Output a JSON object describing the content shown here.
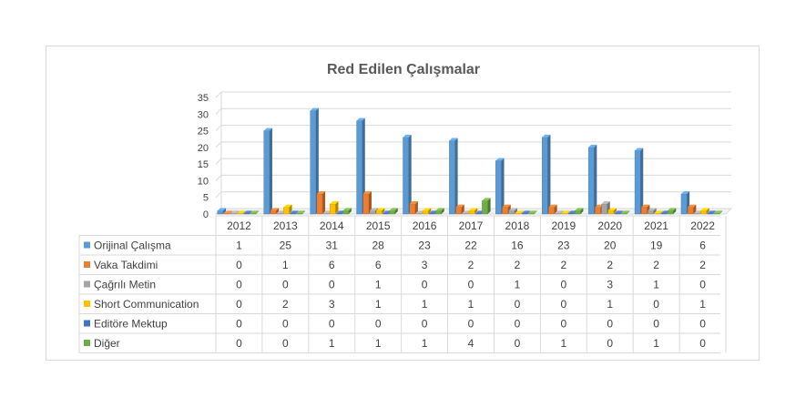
{
  "chart_data": {
    "type": "bar",
    "title": "Red Edilen Çalışmalar",
    "categories": [
      "2012",
      "2013",
      "2014",
      "2015",
      "2016",
      "2017",
      "2018",
      "2019",
      "2020",
      "2021",
      "2022"
    ],
    "ylim": [
      0,
      35
    ],
    "yticks": [
      0,
      5,
      10,
      15,
      20,
      25,
      30,
      35
    ],
    "grid": true,
    "legend": "data-table",
    "series": [
      {
        "name": "Orijinal Çalışma",
        "color": "#4472C4",
        "face": "#5B9BD5",
        "values": [
          1,
          25,
          31,
          28,
          23,
          22,
          16,
          23,
          20,
          19,
          6
        ]
      },
      {
        "name": "Vaka Takdimi",
        "color": "#C55A11",
        "face": "#ED7D31",
        "values": [
          0,
          1,
          6,
          6,
          3,
          2,
          2,
          2,
          2,
          2,
          2
        ]
      },
      {
        "name": "Çağrılı Metin",
        "color": "#7F7F7F",
        "face": "#A5A5A5",
        "values": [
          0,
          0,
          0,
          1,
          0,
          0,
          1,
          0,
          3,
          1,
          0
        ]
      },
      {
        "name": "Short Communication",
        "color": "#BF9000",
        "face": "#FFC000",
        "values": [
          0,
          2,
          3,
          1,
          1,
          1,
          0,
          0,
          1,
          0,
          1
        ]
      },
      {
        "name": "Editöre Mektup",
        "color": "#2F5597",
        "face": "#4472C4",
        "values": [
          0,
          0,
          0,
          0,
          0,
          0,
          0,
          0,
          0,
          0,
          0
        ]
      },
      {
        "name": "Diğer",
        "color": "#548235",
        "face": "#70AD47",
        "values": [
          0,
          0,
          1,
          1,
          1,
          4,
          0,
          1,
          0,
          1,
          0
        ]
      }
    ]
  }
}
